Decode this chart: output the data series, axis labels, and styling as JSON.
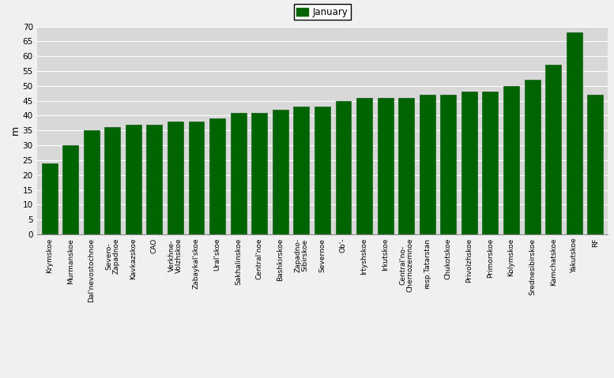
{
  "categories": [
    "Krymskoe",
    "Murmanskoe",
    "Dal'nevostochnoe",
    "Severo-\nZapadnoe",
    "Kavkazskoe",
    "CAO",
    "Verkhne-\nVolzhskoe",
    "Zabaykal'skoe",
    "Ural'skoe",
    "Sakhalinskoe",
    "Central'noe",
    "Bashkirskoe",
    "Zapadno-\nSibirskoe",
    "Severnoe",
    "Ob'-",
    "Irtyshskoe",
    "Irkutskoe",
    "Central'no-\nChernozemnoe",
    "resp.Tatarstan",
    "Chukotskoe",
    "Privolzhskoe",
    "Primorskoe",
    "Kolymskoe",
    "Srednesibirskoe",
    "Kamchatskoe",
    "Yakutskoe",
    "RF"
  ],
  "values": [
    24,
    30,
    35,
    36,
    37,
    37,
    38,
    38,
    39,
    41,
    41,
    42,
    43,
    43,
    45,
    46,
    46,
    46,
    47,
    47,
    48,
    48,
    50,
    52,
    57,
    68,
    47
  ],
  "bar_color": "#006400",
  "bar_edge_color": "#1a5c1a",
  "legend_label": "January",
  "legend_color": "#006400",
  "ylabel": "m",
  "ylim": [
    0,
    70
  ],
  "yticks": [
    0,
    5,
    10,
    15,
    20,
    25,
    30,
    35,
    40,
    45,
    50,
    55,
    60,
    65,
    70
  ],
  "plot_bg_color": "#d8d8d8",
  "fig_bg_color": "#f0f0f0",
  "grid_color": "#ffffff",
  "tick_fontsize": 7.5,
  "ylabel_fontsize": 9
}
